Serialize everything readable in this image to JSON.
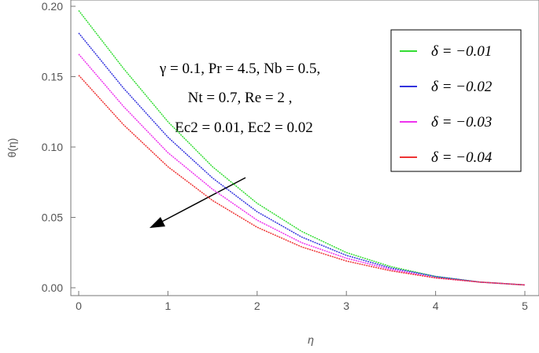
{
  "chart_data": {
    "type": "line",
    "x_label": "η",
    "y_label": "θ(η)",
    "annotations": [
      "γ = 0.1,  Pr = 4.5,  Nb = 0.5,",
      "Nt = 0.7, Re = 2 ,",
      "Ec2 = 0.01, Ec2 = 0.02"
    ],
    "x": [
      0,
      0.5,
      1,
      1.5,
      2,
      2.5,
      3,
      3.5,
      4,
      4.5,
      5
    ],
    "series": [
      {
        "name": "δ = −0.01",
        "color": "#33dd33",
        "values": [
          0.197,
          0.156,
          0.118,
          0.086,
          0.06,
          0.04,
          0.025,
          0.015,
          0.008,
          0.004,
          0.002
        ]
      },
      {
        "name": "δ = −0.02",
        "color": "#3333dd",
        "values": [
          0.181,
          0.142,
          0.107,
          0.078,
          0.054,
          0.036,
          0.023,
          0.014,
          0.008,
          0.004,
          0.002
        ]
      },
      {
        "name": "δ = −0.03",
        "color": "#ee33ee",
        "values": [
          0.166,
          0.129,
          0.096,
          0.07,
          0.048,
          0.032,
          0.021,
          0.013,
          0.007,
          0.004,
          0.002
        ]
      },
      {
        "name": "δ = −0.04",
        "color": "#ee3333",
        "values": [
          0.151,
          0.116,
          0.086,
          0.062,
          0.043,
          0.029,
          0.019,
          0.012,
          0.007,
          0.004,
          0.002
        ]
      }
    ],
    "xlim": [
      0,
      5
    ],
    "ylim": [
      0,
      0.2
    ],
    "xticks": [
      0,
      1,
      2,
      3,
      4,
      5
    ],
    "yticks": [
      {
        "value": 0,
        "label": "0.00"
      },
      {
        "value": 0.05,
        "label": "0.05"
      },
      {
        "value": 0.1,
        "label": "0.10"
      },
      {
        "value": 0.15,
        "label": "0.15"
      },
      {
        "value": 0.2,
        "label": "0.20"
      }
    ]
  }
}
